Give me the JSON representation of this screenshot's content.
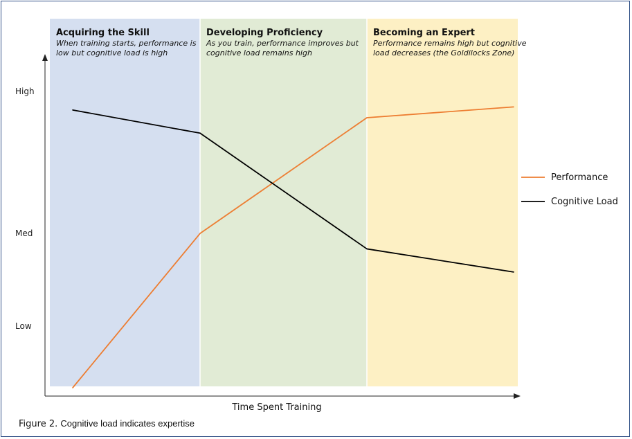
{
  "chart_data": {
    "type": "line",
    "x": [
      0,
      1,
      2,
      3
    ],
    "series": [
      {
        "name": "Performance",
        "color": "#ed7d31",
        "values": [
          0.0,
          1.0,
          1.75,
          1.82
        ]
      },
      {
        "name": "Cognitive Load",
        "color": "#000000",
        "values": [
          1.8,
          1.65,
          0.9,
          0.75
        ]
      }
    ],
    "ylim": [
      0,
      2.1
    ],
    "y_ticks": [
      {
        "label": "Low",
        "value": 0.4
      },
      {
        "label": "Med",
        "value": 1.0
      },
      {
        "label": "High",
        "value": 1.92
      }
    ],
    "xlabel": "Time Spent Training",
    "legend_position": "right",
    "zones": [
      {
        "title": "Acquiring the Skill",
        "subtitle_lines": [
          "When training starts, performance is",
          "low but cognitive load is high"
        ],
        "color": "#d5dff0",
        "from": 0,
        "to": 1
      },
      {
        "title": "Developing Proficiency",
        "subtitle_lines": [
          "As you train, performance improves but",
          "cognitive load remains high"
        ],
        "color": "#e1ebd5",
        "from": 1,
        "to": 2
      },
      {
        "title": "Becoming an Expert",
        "subtitle_lines": [
          "Performance remains high but cognitive",
          "load decreases (the Goldilocks Zone)"
        ],
        "color": "#fdf0c4",
        "from": 2,
        "to": 3
      }
    ]
  },
  "caption": {
    "figure": "Figure 2.",
    "text": "Cognitive load indicates expertise"
  }
}
